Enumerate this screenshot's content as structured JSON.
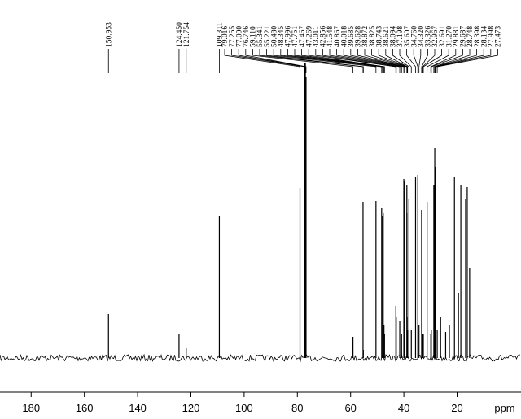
{
  "chart_data": {
    "type": "nmr",
    "x_label": "ppm",
    "xlim": [
      191.7,
      -4
    ],
    "xticks": [
      180,
      160,
      140,
      120,
      100,
      80,
      60,
      40,
      20
    ],
    "ylim": [
      0,
      365
    ],
    "color": "#000000",
    "peaks": {
      "x": [
        150.953,
        124.45,
        121.754,
        109.311,
        79.016,
        77.255,
        77.0,
        76.746,
        59.11,
        55.341,
        55.221,
        50.48,
        48.345,
        47.996,
        47.751,
        47.467,
        47.269,
        43.011,
        42.856,
        41.548,
        40.867,
        40.018,
        39.685,
        39.628,
        38.872,
        38.825,
        38.743,
        38.621,
        38.094,
        37.198,
        35.607,
        34.76,
        34.32,
        33.326,
        32.967,
        32.691,
        31.27,
        29.881,
        29.687,
        28.748,
        28.398,
        28.134,
        27.998,
        27.473,
        26.2,
        24.3,
        22.9,
        21.0,
        19.5,
        18.6,
        16.8,
        16.2,
        15.3
      ],
      "values": [
        54,
        29,
        12,
        175,
        209,
        362,
        362,
        345,
        26,
        192,
        10,
        193,
        184,
        175,
        178,
        40,
        30,
        64,
        50,
        45,
        30,
        220,
        218,
        45,
        212,
        178,
        50,
        35,
        195,
        35,
        222,
        225,
        40,
        182,
        30,
        30,
        192,
        30,
        35,
        212,
        258,
        235,
        20,
        35,
        50,
        32,
        40,
        223,
        80,
        212,
        195,
        210,
        110
      ],
      "labels": [
        "150.953",
        "124.450",
        "121.754",
        "109.311",
        "79.016",
        "77.255",
        "77.000",
        "76.746",
        "59.110",
        "55.341",
        "55.221",
        "50.480",
        "48.345",
        "47.996",
        "47.751",
        "47.467",
        "47.269",
        "43.011",
        "42.856",
        "41.548",
        "40.867",
        "40.018",
        "39.685",
        "39.628",
        "38.872",
        "38.825",
        "38.743",
        "38.621",
        "38.094",
        "37.198",
        "35.607",
        "34.760",
        "34.320",
        "33.326",
        "32.967",
        "32.691",
        "31.270",
        "29.881",
        "29.687",
        "28.748",
        "28.398",
        "28.134",
        "27.998",
        "27.473",
        null,
        null,
        null,
        null,
        null,
        null,
        null,
        null,
        null
      ]
    }
  }
}
